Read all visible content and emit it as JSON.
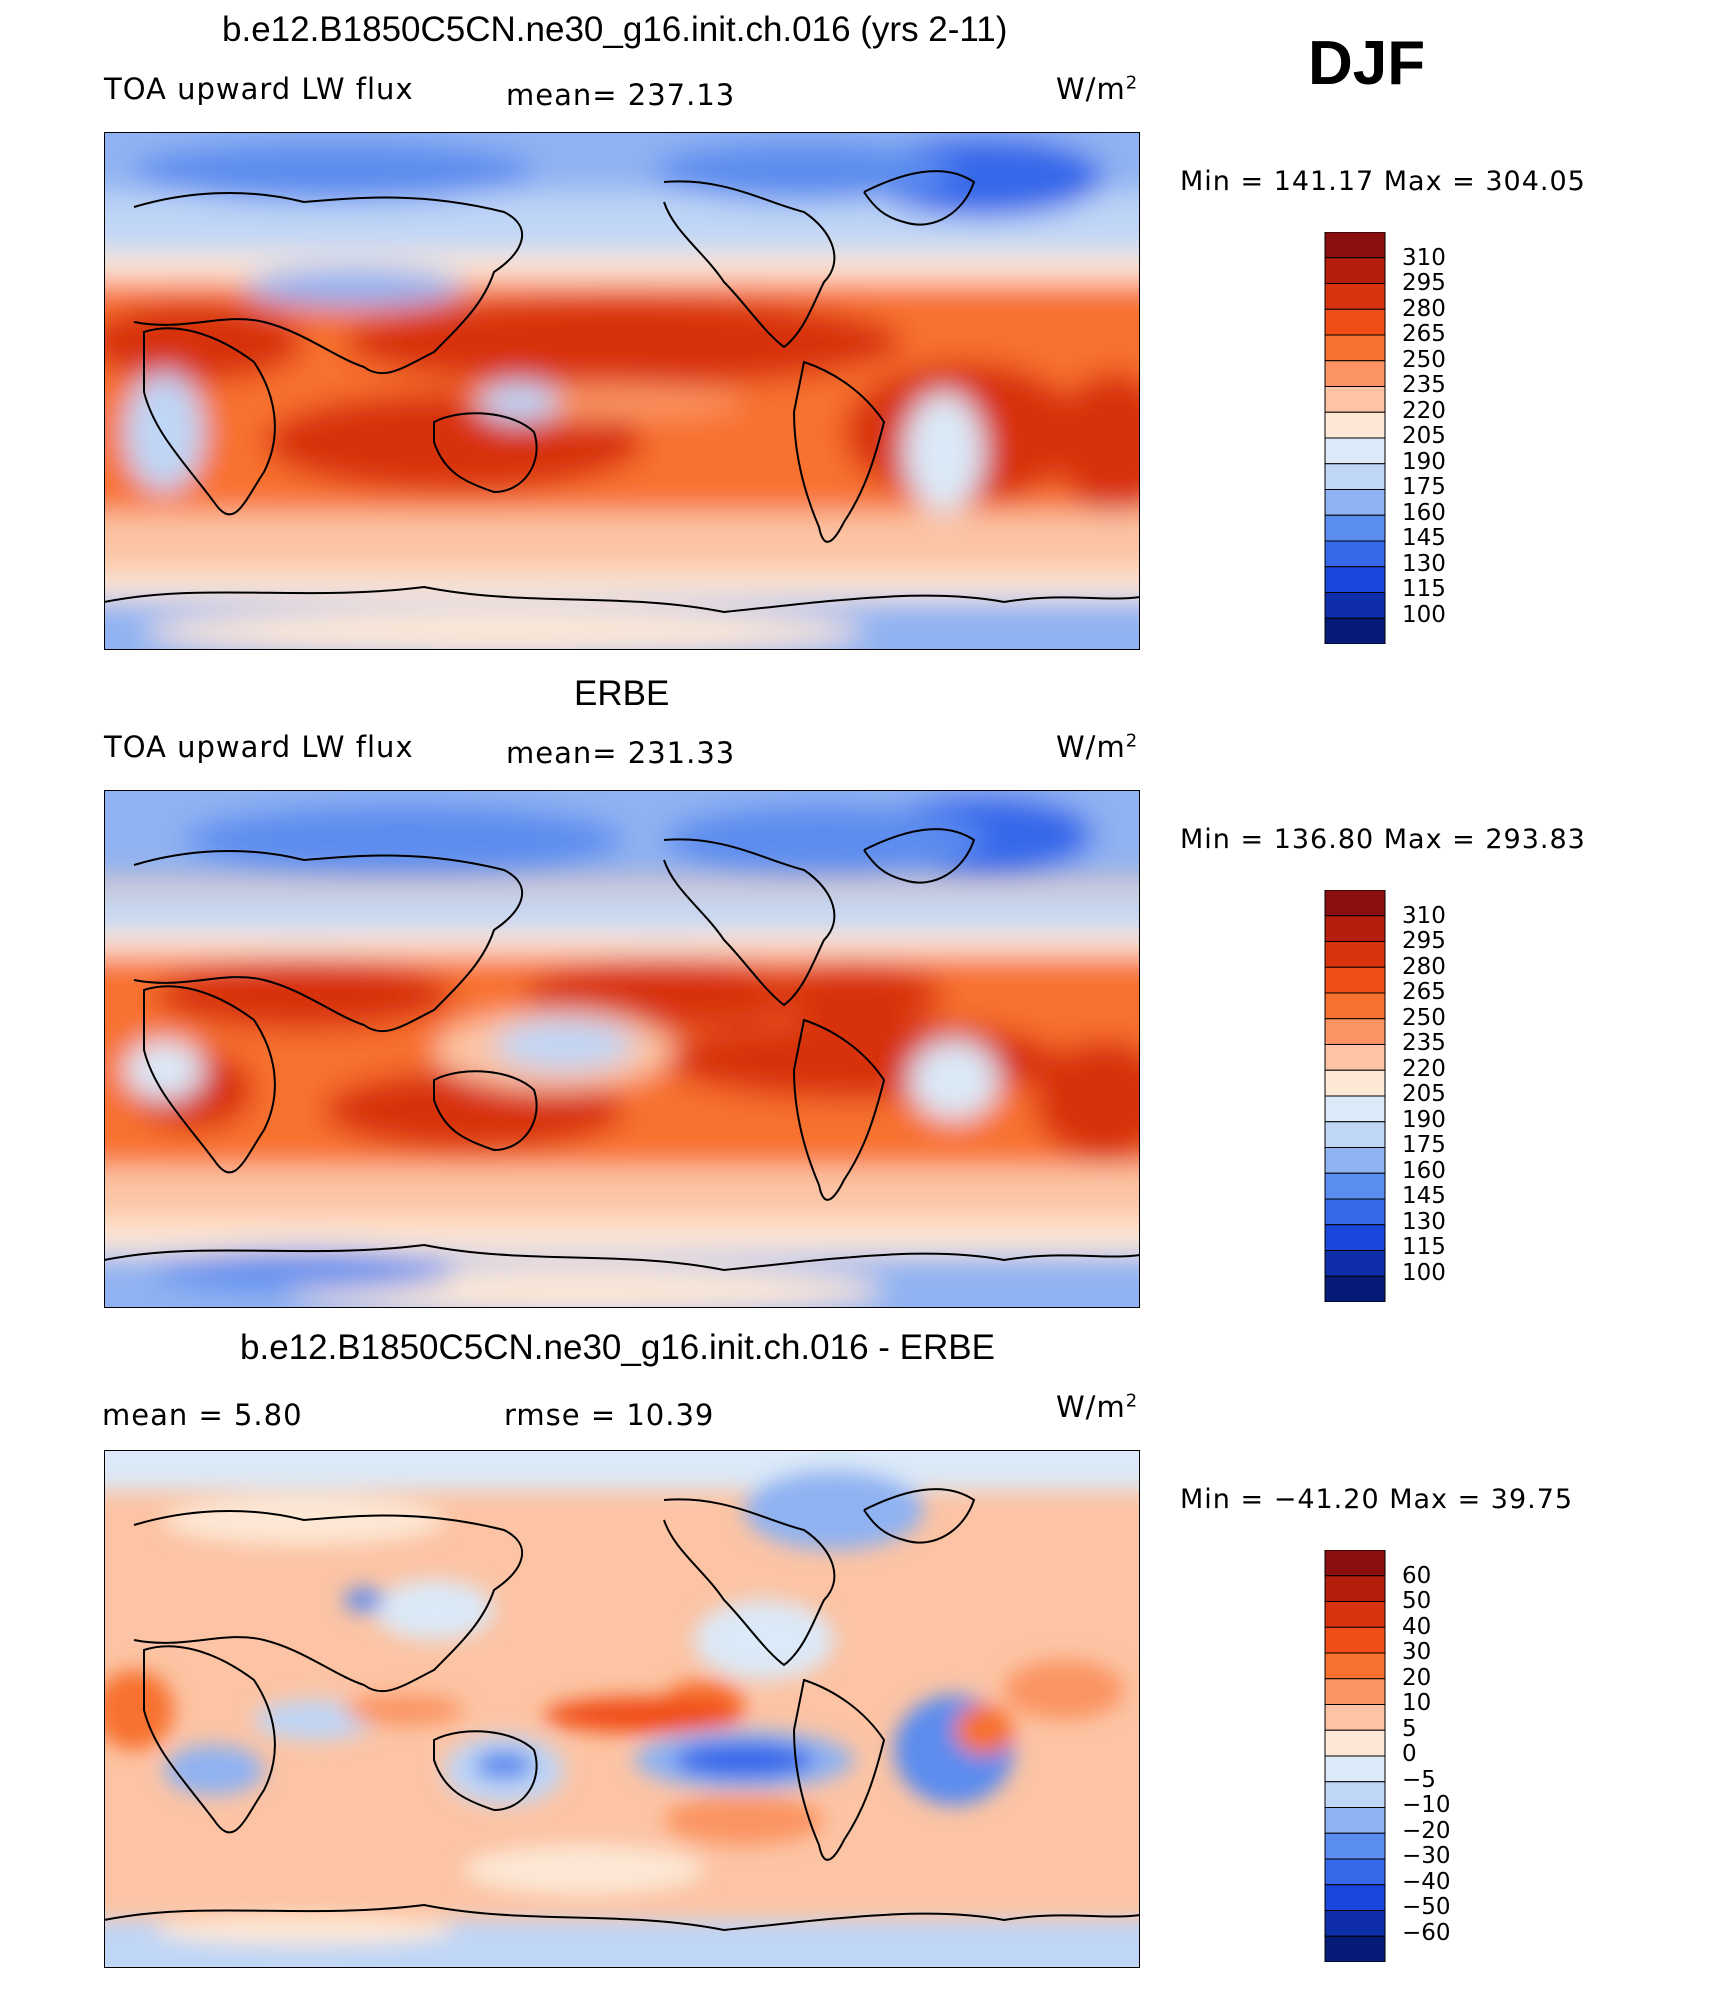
{
  "season": "DJF",
  "panels": [
    {
      "title": "b.e12.B1850C5CN.ne30_g16.init.ch.016 (yrs 2-11)",
      "variable": "TOA upward LW flux",
      "stat": "mean=  237.13",
      "units": "W/m",
      "units_sup": "2",
      "minmax": "Min  =  141.17  Max  =  304.05"
    },
    {
      "title": "ERBE",
      "variable": "TOA upward LW flux",
      "stat": "mean=  231.33",
      "units": "W/m",
      "units_sup": "2",
      "minmax": "Min  =  136.80  Max  =  293.83"
    },
    {
      "title": "b.e12.B1850C5CN.ne30_g16.init.ch.016 - ERBE",
      "mean_text": "mean  =      5.80",
      "rmse_text": "rmse  =    10.39",
      "units": "W/m",
      "units_sup": "2",
      "minmax": "Min  =  −41.20  Max  =     39.75"
    }
  ],
  "chart_data": [
    {
      "type": "heatmap",
      "title": "b.e12.B1850C5CN.ne30_g16.init.ch.016 (yrs 2-11)",
      "field": "TOA upward LW flux",
      "units": "W/m2",
      "mean": 237.13,
      "min": 141.17,
      "max": 304.05,
      "colorbar_levels": [
        310,
        295,
        280,
        265,
        250,
        235,
        220,
        205,
        190,
        175,
        160,
        145,
        130,
        115,
        100
      ],
      "colors": [
        "#8a0f0f",
        "#b51d0c",
        "#d8320f",
        "#f04e16",
        "#f8712f",
        "#fb9462",
        "#fcc4a4",
        "#fde8d6",
        "#dbe9f8",
        "#bfd6f6",
        "#8fb2f2",
        "#5b8cef",
        "#3668ea",
        "#1a46dc",
        "#0d2ea8",
        "#061a78"
      ]
    },
    {
      "type": "heatmap",
      "title": "ERBE",
      "field": "TOA upward LW flux",
      "units": "W/m2",
      "mean": 231.33,
      "min": 136.8,
      "max": 293.83,
      "colorbar_levels": [
        310,
        295,
        280,
        265,
        250,
        235,
        220,
        205,
        190,
        175,
        160,
        145,
        130,
        115,
        100
      ],
      "colors": [
        "#8a0f0f",
        "#b51d0c",
        "#d8320f",
        "#f04e16",
        "#f8712f",
        "#fb9462",
        "#fcc4a4",
        "#fde8d6",
        "#dbe9f8",
        "#bfd6f6",
        "#8fb2f2",
        "#5b8cef",
        "#3668ea",
        "#1a46dc",
        "#0d2ea8",
        "#061a78"
      ]
    },
    {
      "type": "heatmap",
      "title": "b.e12.B1850C5CN.ne30_g16.init.ch.016 - ERBE",
      "field": "difference",
      "units": "W/m2",
      "mean": 5.8,
      "rmse": 10.39,
      "min": -41.2,
      "max": 39.75,
      "colorbar_levels": [
        "60",
        "50",
        "40",
        "30",
        "20",
        "10",
        "5",
        "0",
        "−5",
        "−10",
        "−20",
        "−30",
        "−40",
        "−50",
        "−60"
      ],
      "colors": [
        "#8a0f0f",
        "#b51d0c",
        "#d8320f",
        "#f04e16",
        "#f8712f",
        "#fb9462",
        "#fcc4a4",
        "#fde8d6",
        "#dbe9f8",
        "#bfd6f6",
        "#8fb2f2",
        "#5b8cef",
        "#3668ea",
        "#1a46dc",
        "#0d2ea8",
        "#061a78"
      ]
    }
  ]
}
